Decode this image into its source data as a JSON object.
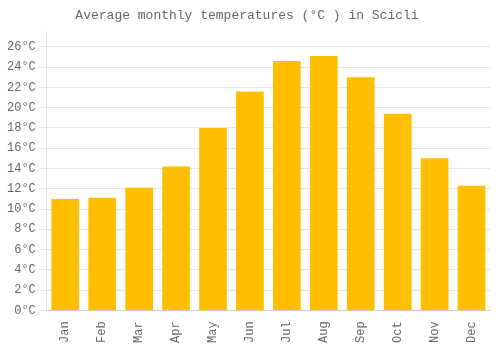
{
  "chart_data": {
    "type": "bar",
    "title": "Average monthly temperatures (°C ) in Scicli",
    "categories": [
      "Jan",
      "Feb",
      "Mar",
      "Apr",
      "May",
      "Jun",
      "Jul",
      "Aug",
      "Sep",
      "Oct",
      "Nov",
      "Dec"
    ],
    "values": [
      11.0,
      11.1,
      12.1,
      14.2,
      18.0,
      21.6,
      24.6,
      25.1,
      23.0,
      19.4,
      15.0,
      12.3
    ],
    "color": "#FFBE00",
    "ylim": [
      0,
      27.5
    ],
    "yticks": [
      {
        "value": 0,
        "label": "0°C"
      },
      {
        "value": 2,
        "label": "2°C"
      },
      {
        "value": 4,
        "label": "4°C"
      },
      {
        "value": 6,
        "label": "6°C"
      },
      {
        "value": 8,
        "label": "8°C"
      },
      {
        "value": 10,
        "label": "10°C"
      },
      {
        "value": 12,
        "label": "12°C"
      },
      {
        "value": 14,
        "label": "14°C"
      },
      {
        "value": 16,
        "label": "16°C"
      },
      {
        "value": 18,
        "label": "18°C"
      },
      {
        "value": 20,
        "label": "20°C"
      },
      {
        "value": 22,
        "label": "22°C"
      },
      {
        "value": 24,
        "label": "24°C"
      },
      {
        "value": 26,
        "label": "26°C"
      }
    ],
    "grid": true
  }
}
